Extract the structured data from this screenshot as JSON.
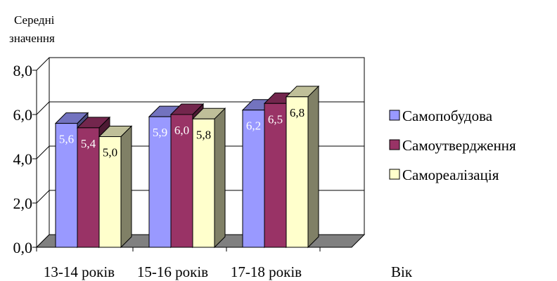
{
  "chart_data": {
    "type": "bar",
    "ylabel_lines": [
      "Середні",
      "значення"
    ],
    "xlabel": "Вік",
    "categories": [
      "13-14 років",
      "15-16 років",
      "17-18 років"
    ],
    "series": [
      {
        "name": "Самопобудова",
        "values": [
          5.6,
          5.9,
          6.2
        ],
        "labels": [
          "5,6",
          "5,9",
          "6,2"
        ],
        "color": "#9999ff",
        "label_color": "#ffffff"
      },
      {
        "name": "Самоутвердження",
        "values": [
          5.4,
          6.0,
          6.5
        ],
        "labels": [
          "5,4",
          "6,0",
          "6,5"
        ],
        "color": "#993366",
        "label_color": "#ffffff"
      },
      {
        "name": "Самореалізація",
        "values": [
          5.0,
          5.8,
          6.8
        ],
        "labels": [
          "5,0",
          "5,8",
          "6,8"
        ],
        "color": "#ffffcc",
        "label_color": "#000000"
      }
    ],
    "yticks": [
      0,
      2,
      4,
      6,
      8
    ],
    "ytick_labels": [
      "0,0",
      "2,0",
      "4,0",
      "6,0",
      "8,0"
    ],
    "ylim": [
      0,
      8
    ],
    "grid": true,
    "style": "3d-clustered-column",
    "floor_color": "#808080",
    "legend_position": "right"
  }
}
